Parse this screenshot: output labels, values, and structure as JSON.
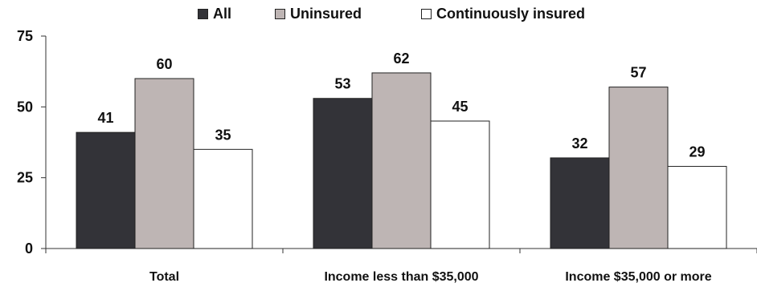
{
  "chart_data": {
    "type": "bar",
    "title": "",
    "xlabel": "",
    "ylabel": "",
    "categories": [
      "Total",
      "Income less than $35,000",
      "Income $35,000 or more"
    ],
    "series": [
      {
        "name": "All",
        "values": [
          41,
          53,
          32
        ],
        "color": "#333338"
      },
      {
        "name": "Uninsured",
        "values": [
          60,
          62,
          57
        ],
        "color": "#beb5b4"
      },
      {
        "name": "Continuously insured",
        "values": [
          35,
          45,
          29
        ],
        "color": "#ffffff"
      }
    ],
    "ylim": [
      0,
      75
    ],
    "yticks": [
      0,
      25,
      50,
      75
    ],
    "grid": false,
    "legend": "top",
    "data_labels": true
  }
}
